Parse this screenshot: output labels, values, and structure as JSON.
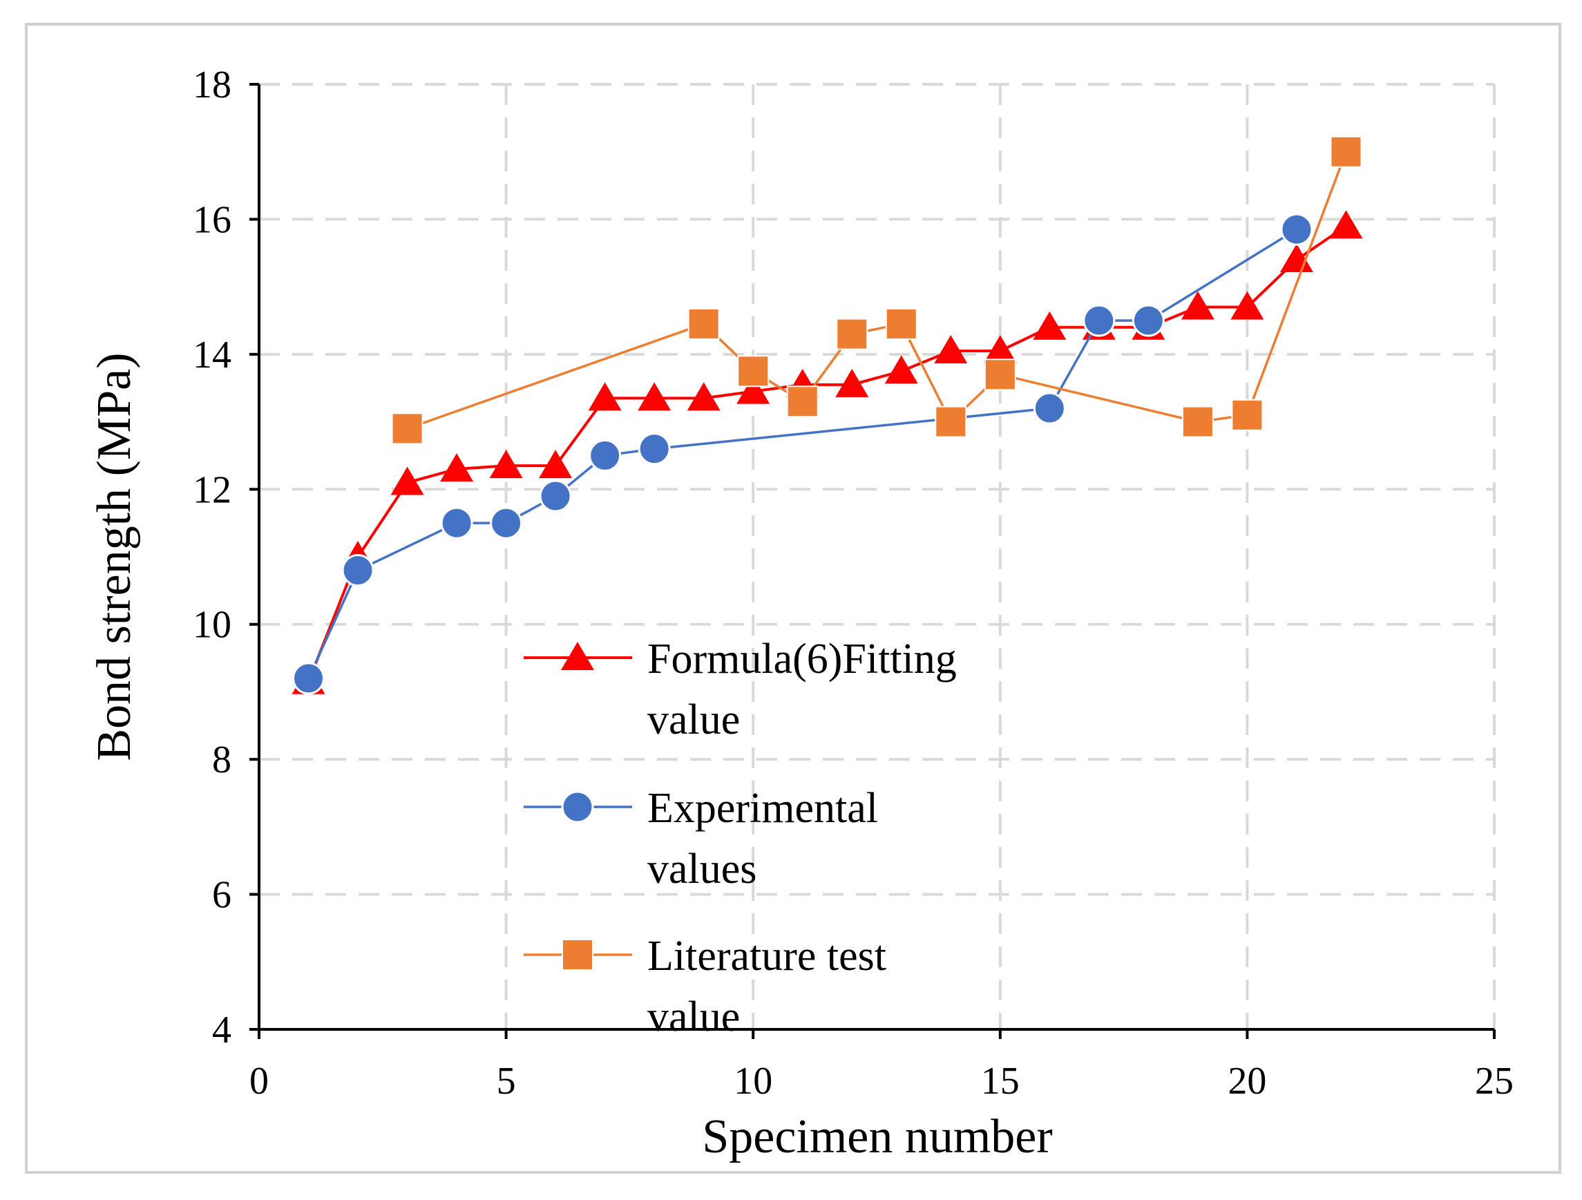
{
  "chart_data": {
    "type": "line",
    "title": "",
    "xlabel": "Specimen number",
    "ylabel": "Bond strength (MPa)",
    "xlim": [
      0,
      25
    ],
    "ylim": [
      4,
      18
    ],
    "xticks": [
      "0",
      "5",
      "10",
      "15",
      "20",
      "25"
    ],
    "yticks": [
      "4",
      "6",
      "8",
      "10",
      "12",
      "14",
      "16",
      "18"
    ],
    "grid": true,
    "legend_position": "center-bottom",
    "colors": {
      "formula": "#ff0000",
      "experimental": "#4472c4",
      "literature": "#ed7d31",
      "grid": "#d9d9d9",
      "border": "#d0d0d0"
    },
    "series": [
      {
        "key": "formula",
        "name": "Formula(6)Fitting value",
        "legend_lines": [
          "Formula(6)Fitting",
          "value"
        ],
        "marker": "triangle",
        "x": [
          1,
          2,
          3,
          4,
          5,
          6,
          7,
          8,
          9,
          10,
          11,
          12,
          13,
          14,
          15,
          16,
          17,
          18,
          19,
          20,
          21,
          22
        ],
        "values": [
          9.15,
          11.0,
          12.1,
          12.3,
          12.35,
          12.35,
          13.35,
          13.35,
          13.35,
          13.45,
          13.55,
          13.55,
          13.75,
          14.05,
          14.05,
          14.4,
          14.4,
          14.4,
          14.7,
          14.7,
          15.4,
          15.9
        ]
      },
      {
        "key": "experimental",
        "name": "Experimental values",
        "legend_lines": [
          "Experimental",
          "values"
        ],
        "marker": "circle",
        "x": [
          1,
          2,
          4,
          5,
          6,
          7,
          8,
          16,
          17,
          18,
          21
        ],
        "values": [
          9.2,
          10.8,
          11.5,
          11.5,
          11.9,
          12.5,
          12.6,
          13.2,
          14.5,
          14.5,
          15.85
        ]
      },
      {
        "key": "literature",
        "name": "Literature test value",
        "legend_lines": [
          "Literature test",
          "value"
        ],
        "marker": "square",
        "x": [
          3,
          9,
          10,
          11,
          12,
          13,
          14,
          15,
          19,
          20,
          22
        ],
        "values": [
          12.9,
          14.45,
          13.75,
          13.3,
          14.3,
          14.45,
          13.0,
          13.7,
          13.0,
          13.1,
          17.0
        ]
      }
    ]
  }
}
